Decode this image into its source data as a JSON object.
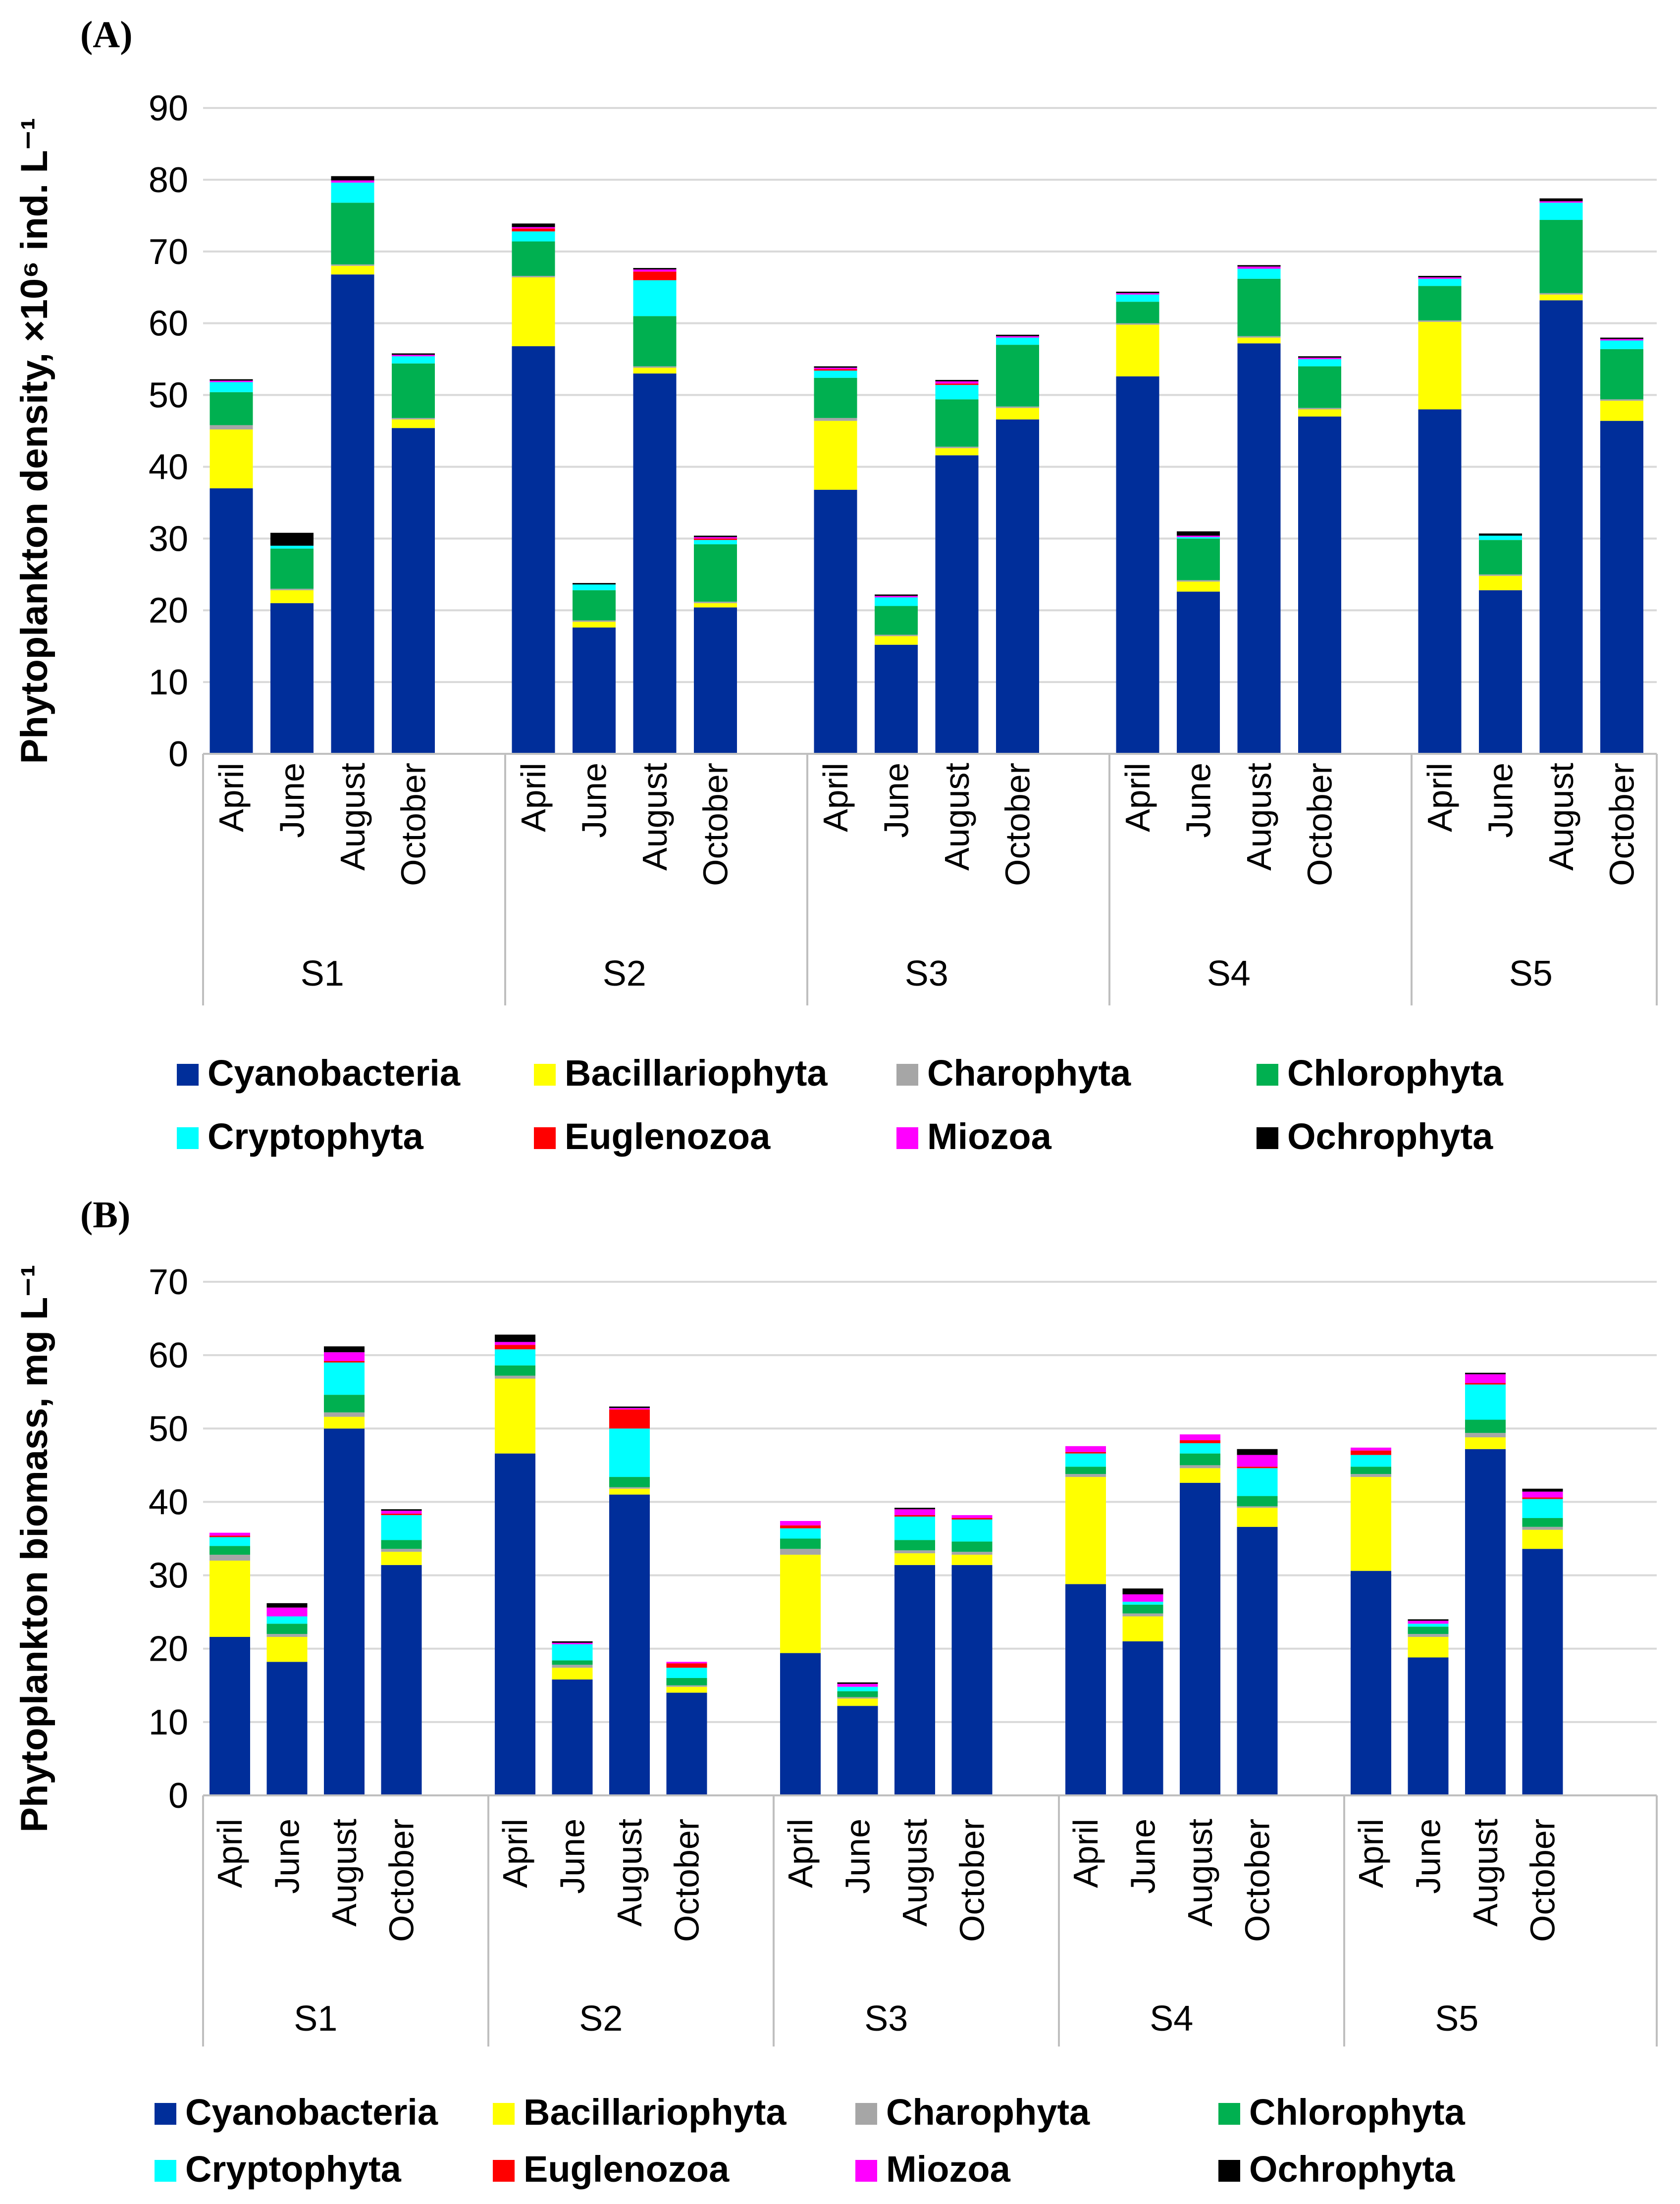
{
  "colors": {
    "Cyanobacteria": "#002E9A",
    "Bacillariophyta": "#FFFF00",
    "Charophyta": "#A6A6A6",
    "Chlorophyta": "#00B050",
    "Cryptophyta": "#00FFFF",
    "Euglenozoa": "#FF0000",
    "Miozoa": "#FF00FF",
    "Ochrophyta": "#000000",
    "gridline": "#D9D9D9",
    "axis": "#BFBFBF"
  },
  "chart_data": [
    {
      "panel_label": "(A)",
      "type": "bar",
      "stacked": true,
      "ylabel": "Phytoplankton density, ×10⁶ ind. L⁻¹",
      "ylim": [
        0,
        90
      ],
      "yticks": [
        "0",
        "10",
        "20",
        "30",
        "40",
        "50",
        "60",
        "70",
        "80",
        "90"
      ],
      "groups": [
        "S1",
        "S2",
        "S3",
        "S4",
        "S5"
      ],
      "categories": [
        "April",
        "June",
        "August",
        "October"
      ],
      "series_names": [
        "Cyanobacteria",
        "Bacillariophyta",
        "Charophyta",
        "Chlorophyta",
        "Cryptophyta",
        "Euglenozoa",
        "Miozoa",
        "Ochrophyta"
      ],
      "values": [
        [
          [
            37,
            8.2,
            0.6,
            4.6,
            1.4,
            0,
            0.2,
            0.2
          ],
          [
            21,
            1.8,
            0.2,
            5.6,
            0.4,
            0,
            0,
            1.8
          ],
          [
            66.8,
            1.2,
            0.2,
            8.6,
            2.8,
            0,
            0.3,
            0.6
          ],
          [
            45.4,
            1.2,
            0.2,
            7.6,
            1.0,
            0,
            0.2,
            0.2
          ]
        ],
        [
          [
            56.8,
            9.6,
            0.2,
            4.8,
            1.4,
            0.4,
            0.2,
            0.5
          ],
          [
            17.6,
            0.8,
            0.2,
            4.2,
            0.8,
            0,
            0,
            0.2
          ],
          [
            53,
            0.8,
            0.2,
            7.0,
            5.0,
            1.2,
            0.3,
            0.2
          ],
          [
            20.4,
            0.6,
            0.2,
            8.0,
            0.6,
            0.2,
            0.2,
            0.2
          ]
        ],
        [
          [
            36.8,
            9.6,
            0.4,
            5.6,
            1.0,
            0.2,
            0.2,
            0.2
          ],
          [
            15.2,
            1.2,
            0.2,
            4.0,
            1.2,
            0,
            0.2,
            0.2
          ],
          [
            41.6,
            1.0,
            0.2,
            6.6,
            2.0,
            0.2,
            0.3,
            0.2
          ],
          [
            46.6,
            1.6,
            0.2,
            8.6,
            1.0,
            0,
            0.2,
            0.2
          ]
        ],
        [
          [
            52.6,
            7.2,
            0.2,
            3.0,
            1.0,
            0,
            0.2,
            0.2
          ],
          [
            22.6,
            1.4,
            0.2,
            5.8,
            0.2,
            0,
            0.2,
            0.6
          ],
          [
            57.2,
            0.8,
            0.2,
            8.0,
            1.4,
            0,
            0.3,
            0.2
          ],
          [
            47,
            1.0,
            0.2,
            5.8,
            1.0,
            0,
            0.2,
            0.2
          ]
        ],
        [
          [
            48,
            12.2,
            0.2,
            4.8,
            1.0,
            0,
            0.2,
            0.2
          ],
          [
            22.8,
            2.0,
            0.2,
            4.8,
            0.6,
            0,
            0,
            0.3
          ],
          [
            63.2,
            0.8,
            0.2,
            10.2,
            2.4,
            0,
            0.2,
            0.4
          ],
          [
            46.4,
            2.8,
            0.2,
            7.0,
            1.2,
            0,
            0.2,
            0.2
          ]
        ]
      ]
    },
    {
      "panel_label": "(B)",
      "type": "bar",
      "stacked": true,
      "ylabel": "Phytoplankton biomass, mg L⁻¹",
      "ylim": [
        0,
        70
      ],
      "yticks": [
        "0",
        "10",
        "20",
        "30",
        "40",
        "50",
        "60",
        "70"
      ],
      "groups": [
        "S1",
        "S2",
        "S3",
        "S4",
        "S5"
      ],
      "categories": [
        "April",
        "June",
        "August",
        "October"
      ],
      "series_names": [
        "Cyanobacteria",
        "Bacillariophyta",
        "Charophyta",
        "Chlorophyta",
        "Cryptophyta",
        "Euglenozoa",
        "Miozoa",
        "Ochrophyta"
      ],
      "values": [
        [
          [
            21.6,
            10.4,
            0.8,
            1.2,
            1.2,
            0.2,
            0.4,
            0
          ],
          [
            18.2,
            3.4,
            0.4,
            1.4,
            1.0,
            0,
            1.2,
            0.6
          ],
          [
            50,
            1.6,
            0.6,
            2.4,
            4.4,
            0.2,
            1.2,
            0.8
          ],
          [
            31.4,
            1.8,
            0.4,
            1.2,
            3.4,
            0.2,
            0.4,
            0.2
          ]
        ],
        [
          [
            46.6,
            10.2,
            0.4,
            1.4,
            2.2,
            0.6,
            0.4,
            1.0
          ],
          [
            15.8,
            1.6,
            0.4,
            0.6,
            2.2,
            0,
            0.2,
            0.2
          ],
          [
            41,
            0.8,
            0.2,
            1.4,
            6.6,
            2.6,
            0.2,
            0.2
          ],
          [
            14,
            0.8,
            0.2,
            1.0,
            1.4,
            0.6,
            0.2,
            0
          ]
        ],
        [
          [
            19.4,
            13.4,
            0.8,
            1.4,
            1.4,
            0.4,
            0.6,
            0
          ],
          [
            12.2,
            1.0,
            0.2,
            0.8,
            0.6,
            0,
            0.4,
            0.2
          ],
          [
            31.4,
            1.6,
            0.4,
            1.4,
            3.2,
            0.2,
            0.8,
            0.2
          ],
          [
            31.4,
            1.4,
            0.4,
            1.4,
            3.0,
            0.2,
            0.4,
            0
          ]
        ],
        [
          [
            28.8,
            14.6,
            0.4,
            1.0,
            1.8,
            0.2,
            0.8,
            0
          ],
          [
            21,
            3.4,
            0.4,
            1.2,
            0.4,
            0,
            1.0,
            0.8
          ],
          [
            42.6,
            2.0,
            0.4,
            1.6,
            1.4,
            0.4,
            0.8,
            0
          ],
          [
            36.6,
            2.6,
            0.2,
            1.4,
            3.8,
            0.2,
            1.6,
            0.8
          ]
        ],
        [
          [
            30.6,
            12.8,
            0.4,
            1.0,
            1.6,
            0.6,
            0.4,
            0
          ],
          [
            18.8,
            2.8,
            0.4,
            1.0,
            0.4,
            0,
            0.4,
            0.2
          ],
          [
            47.2,
            1.6,
            0.6,
            1.8,
            4.8,
            0.2,
            1.2,
            0.2
          ],
          [
            33.6,
            2.6,
            0.4,
            1.2,
            2.6,
            0.2,
            0.8,
            0.4
          ]
        ]
      ]
    }
  ],
  "legend": [
    {
      "label": "Cyanobacteria",
      "color": "#002E9A"
    },
    {
      "label": "Bacillariophyta",
      "color": "#FFFF00"
    },
    {
      "label": "Charophyta",
      "color": "#A6A6A6"
    },
    {
      "label": "Chlorophyta",
      "color": "#00B050"
    },
    {
      "label": "Cryptophyta",
      "color": "#00FFFF"
    },
    {
      "label": "Euglenozoa",
      "color": "#FF0000"
    },
    {
      "label": "Miozoa",
      "color": "#FF00FF"
    },
    {
      "label": "Ochrophyta",
      "color": "#000000"
    }
  ]
}
